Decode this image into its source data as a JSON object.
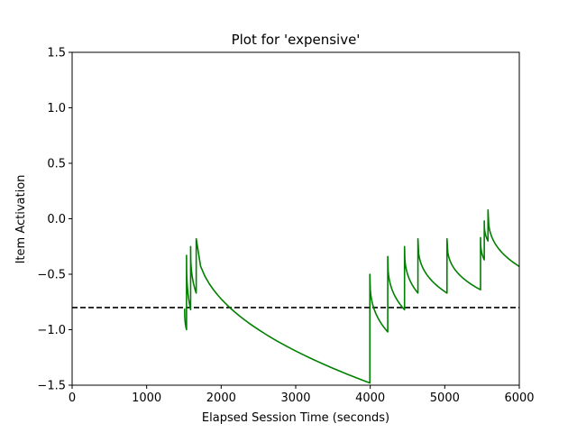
{
  "chart_data": {
    "type": "line",
    "title": "Plot for 'expensive'",
    "xlabel": "Elapsed Session Time (seconds)",
    "ylabel": "Item Activation",
    "xlim": [
      0,
      6000
    ],
    "ylim": [
      -1.5,
      1.5
    ],
    "x_ticks": [
      0,
      1000,
      2000,
      3000,
      4000,
      5000,
      6000
    ],
    "x_tick_labels": [
      "0",
      "1000",
      "2000",
      "3000",
      "4000",
      "5000",
      "6000"
    ],
    "y_ticks": [
      -1.5,
      -1.0,
      -0.5,
      0.0,
      0.5,
      1.0,
      1.5
    ],
    "y_tick_labels": [
      "−1.5",
      "−1.0",
      "−0.5",
      "0.0",
      "0.5",
      "1.0",
      "1.5"
    ],
    "grid": false,
    "threshold": {
      "y": -0.8,
      "style": "dashed",
      "color": "#000000"
    },
    "series": [
      {
        "color": "#008000",
        "segments": [
          {
            "x0": 1510,
            "x1": 1535,
            "y_start": -0.81,
            "y_end": -1.0,
            "decay": "sharp"
          },
          {
            "x0": 1535,
            "x1": 1590,
            "y_start": -0.33,
            "y_end": -0.82,
            "decay": "sharp"
          },
          {
            "x0": 1590,
            "x1": 1665,
            "y_start": -0.25,
            "y_end": -0.67,
            "decay": "sharp"
          },
          {
            "x0": 1665,
            "x1": 3995,
            "y_start": -0.18,
            "y_end": -1.48,
            "decay": "power"
          },
          {
            "x0": 3995,
            "x1": 4235,
            "y_start": -0.5,
            "y_end": -1.02,
            "decay": "sharp"
          },
          {
            "x0": 4235,
            "x1": 4460,
            "y_start": -0.34,
            "y_end": -0.82,
            "decay": "sharp"
          },
          {
            "x0": 4460,
            "x1": 4640,
            "y_start": -0.25,
            "y_end": -0.67,
            "decay": "sharp"
          },
          {
            "x0": 4640,
            "x1": 5030,
            "y_start": -0.18,
            "y_end": -0.67,
            "decay": "sharp"
          },
          {
            "x0": 5030,
            "x1": 5480,
            "y_start": -0.18,
            "y_end": -0.64,
            "decay": "sharp"
          },
          {
            "x0": 5480,
            "x1": 5530,
            "y_start": -0.17,
            "y_end": -0.37,
            "decay": "sharp"
          },
          {
            "x0": 5530,
            "x1": 5580,
            "y_start": -0.02,
            "y_end": -0.2,
            "decay": "sharp"
          },
          {
            "x0": 5580,
            "x1": 6000,
            "y_start": 0.08,
            "y_end": -0.43,
            "decay": "sharp"
          }
        ]
      }
    ]
  }
}
